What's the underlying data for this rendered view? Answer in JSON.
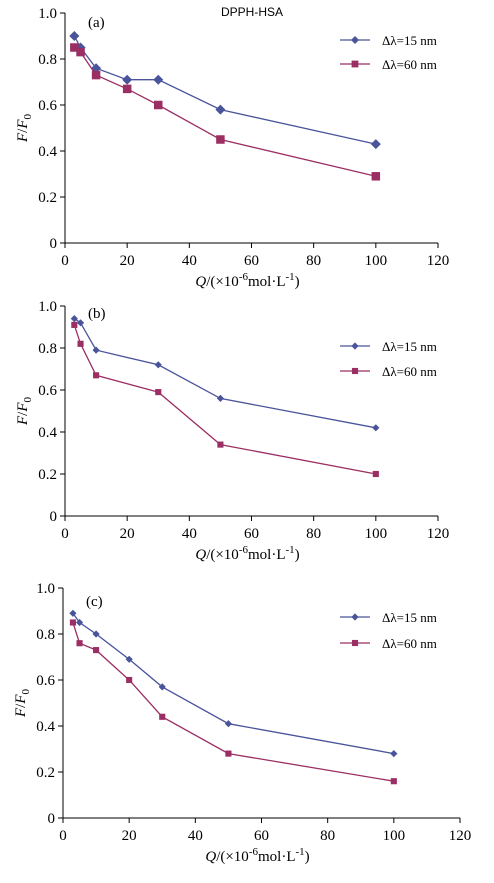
{
  "colors": {
    "series1": "#4a549a",
    "series2": "#9b2f63"
  },
  "chart_data": [
    {
      "type": "line",
      "panel": "(a)",
      "title": "DPPH-HSA",
      "ylabel_main": "F",
      "ylabel_sep": "/",
      "ylabel_sym": "F",
      "ylabel_sub": "0",
      "xlabel_main": "Q",
      "xlabel_rest": "/(×10",
      "xlabel_sup": "-6",
      "xlabel_rest2": "mol·L",
      "xlabel_sup2": "-1",
      "xlabel_close": ")",
      "xlim": [
        0,
        120
      ],
      "ylim": [
        0,
        1.0
      ],
      "xticks": [
        "0",
        "20",
        "40",
        "60",
        "80",
        "100",
        "120"
      ],
      "yticks": [
        "0",
        "0.2",
        "0.4",
        "0.6",
        "0.8",
        "1.0"
      ],
      "grid": false,
      "legend": "top-right",
      "series": [
        {
          "name": "Δλ=15 nm",
          "x": [
            3,
            5,
            10,
            20,
            30,
            50,
            100
          ],
          "y": [
            0.9,
            0.85,
            0.76,
            0.71,
            0.71,
            0.58,
            0.43
          ]
        },
        {
          "name": "Δλ=60 nm",
          "x": [
            3,
            5,
            10,
            20,
            30,
            50,
            100
          ],
          "y": [
            0.85,
            0.83,
            0.73,
            0.67,
            0.6,
            0.45,
            0.29
          ]
        }
      ]
    },
    {
      "type": "line",
      "panel": "(b)",
      "title": "",
      "ylabel_main": "F",
      "ylabel_sep": "/",
      "ylabel_sym": "F",
      "ylabel_sub": "0",
      "xlabel_main": "Q",
      "xlabel_rest": "/(×10",
      "xlabel_sup": "-6",
      "xlabel_rest2": "mol·L",
      "xlabel_sup2": "-1",
      "xlabel_close": ")",
      "xlim": [
        0,
        120
      ],
      "ylim": [
        0,
        1.0
      ],
      "xticks": [
        "0",
        "20",
        "40",
        "60",
        "80",
        "100",
        "120"
      ],
      "yticks": [
        "0",
        "0.2",
        "0.4",
        "0.6",
        "0.8",
        "1.0"
      ],
      "grid": false,
      "legend": "top-right",
      "series": [
        {
          "name": "Δλ=15 nm",
          "x": [
            3,
            5,
            10,
            30,
            50,
            100
          ],
          "y": [
            0.94,
            0.92,
            0.79,
            0.72,
            0.56,
            0.42
          ]
        },
        {
          "name": "Δλ=60 nm",
          "x": [
            3,
            5,
            10,
            30,
            50,
            100
          ],
          "y": [
            0.91,
            0.82,
            0.67,
            0.59,
            0.34,
            0.2
          ]
        }
      ]
    },
    {
      "type": "line",
      "panel": "(c)",
      "title": "",
      "ylabel_main": "F",
      "ylabel_sep": "/",
      "ylabel_sym": "F",
      "ylabel_sub": "0",
      "xlabel_main": "Q",
      "xlabel_rest": "/(×10",
      "xlabel_sup": "-6",
      "xlabel_rest2": "mol·L",
      "xlabel_sup2": "-1",
      "xlabel_close": ")",
      "xlim": [
        0,
        120
      ],
      "ylim": [
        0,
        1.0
      ],
      "xticks": [
        "0",
        "20",
        "40",
        "60",
        "80",
        "100",
        "120"
      ],
      "yticks": [
        "0",
        "0.2",
        "0.4",
        "0.6",
        "0.8",
        "1.0"
      ],
      "grid": false,
      "legend": "top-right",
      "series": [
        {
          "name": "Δλ=15 nm",
          "x": [
            3,
            5,
            10,
            20,
            30,
            50,
            100
          ],
          "y": [
            0.89,
            0.85,
            0.8,
            0.69,
            0.57,
            0.41,
            0.28
          ]
        },
        {
          "name": "Δλ=60 nm",
          "x": [
            3,
            5,
            10,
            20,
            30,
            50,
            100
          ],
          "y": [
            0.85,
            0.76,
            0.73,
            0.6,
            0.44,
            0.28,
            0.16
          ]
        }
      ]
    }
  ]
}
